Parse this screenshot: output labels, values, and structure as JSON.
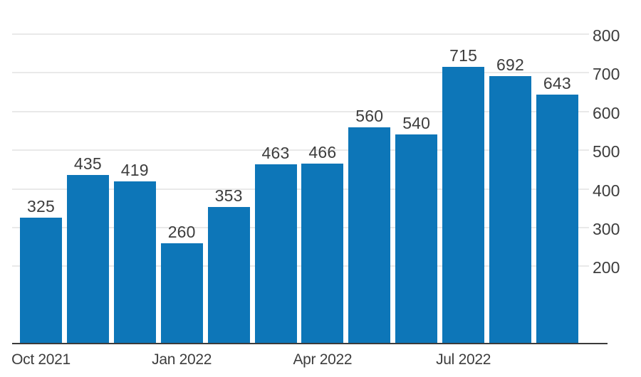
{
  "chart_data": {
    "type": "bar",
    "values": [
      325,
      435,
      419,
      260,
      353,
      463,
      466,
      560,
      540,
      715,
      692,
      643
    ],
    "bar_value_labels": [
      "325",
      "435",
      "419",
      "260",
      "353",
      "463",
      "466",
      "560",
      "540",
      "715",
      "692",
      "643"
    ],
    "x_tick_labels": [
      {
        "bar_index": 0,
        "label": "Oct 2021"
      },
      {
        "bar_index": 3,
        "label": "Jan 2022"
      },
      {
        "bar_index": 6,
        "label": "Apr 2022"
      },
      {
        "bar_index": 9,
        "label": "Jul 2022"
      }
    ],
    "y_ticks": [
      200,
      300,
      400,
      500,
      600,
      700,
      800
    ],
    "ylim": [
      0,
      800
    ],
    "title": "",
    "xlabel": "",
    "ylabel": "",
    "legend_position": "none",
    "grid": "horizontal",
    "y_axis_side": "right",
    "value_labels_shown": true,
    "colors": {
      "bar": "#0d76b8",
      "gridline": "#e9e9e9",
      "axis_line": "#3b3b3b",
      "text": "#3d3d3d",
      "background": "#ffffff"
    }
  }
}
